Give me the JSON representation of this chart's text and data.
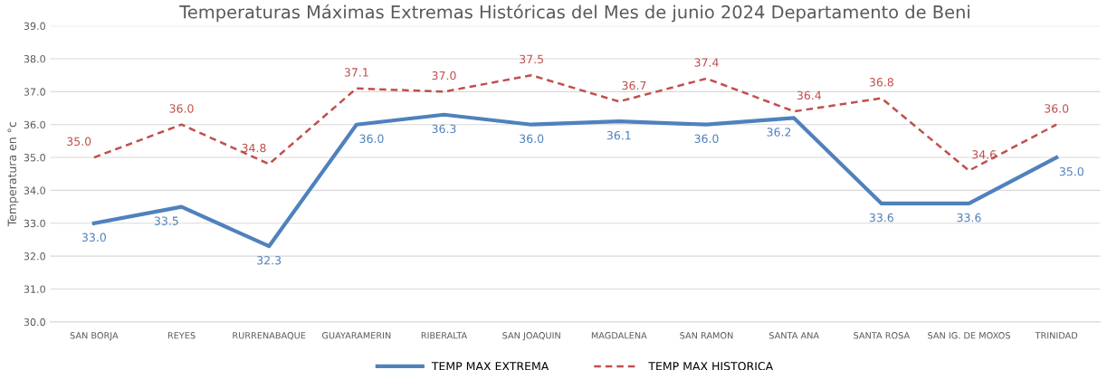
{
  "chart_data": {
    "type": "line",
    "title": "Temperaturas Máximas Extremas Históricas del Mes de junio 2024 Departamento de Beni",
    "ylabel": "Temperatura en °c",
    "categories": [
      "SAN BORJA",
      "REYES",
      "RURRENABAQUE",
      "GUAYARAMERIN",
      "RIBERALTA",
      "SAN JOAQUIN",
      "MAGDALENA",
      "SAN RAMON",
      "SANTA ANA",
      "SANTA ROSA",
      "SAN IG. DE MOXOS",
      "TRINIDAD"
    ],
    "series": [
      {
        "name": "TEMP MAX EXTREMA",
        "color": "#4f81bd",
        "line_style": "solid",
        "values": [
          33.0,
          33.5,
          32.3,
          36.0,
          36.3,
          36.0,
          36.1,
          36.0,
          36.2,
          33.6,
          33.6,
          35.0
        ],
        "value_labels": [
          "33.0",
          "33.5",
          "32.3",
          "36.0",
          "36.3",
          "36.0",
          "36.1",
          "36.0",
          "36.2",
          "33.6",
          "33.6",
          "35.0"
        ]
      },
      {
        "name": "TEMP MAX HISTORICA",
        "color": "#c0504d",
        "line_style": "dashed",
        "values": [
          35.0,
          36.0,
          34.8,
          37.1,
          37.0,
          37.5,
          36.7,
          37.4,
          36.4,
          36.8,
          34.6,
          36.0
        ],
        "value_labels": [
          "35.0",
          "36.0",
          "34.8",
          "37.1",
          "37.0",
          "37.5",
          "36.7",
          "37.4",
          "36.4",
          "36.8",
          "34.6",
          "36.0"
        ]
      }
    ],
    "ylim": [
      30.0,
      39.0
    ],
    "yticks": [
      {
        "value": 30,
        "label": "30.0"
      },
      {
        "value": 31,
        "label": "31.0"
      },
      {
        "value": 32,
        "label": "32.0"
      },
      {
        "value": 33,
        "label": "33.0"
      },
      {
        "value": 34,
        "label": "34.0"
      },
      {
        "value": 35,
        "label": "35.0"
      },
      {
        "value": 36,
        "label": "36.0"
      },
      {
        "value": 37,
        "label": "37.0"
      },
      {
        "value": 38,
        "label": "38.0"
      },
      {
        "value": 39,
        "label": "39.0"
      }
    ],
    "grid": "y",
    "legend": "bottom",
    "marker": "none"
  }
}
